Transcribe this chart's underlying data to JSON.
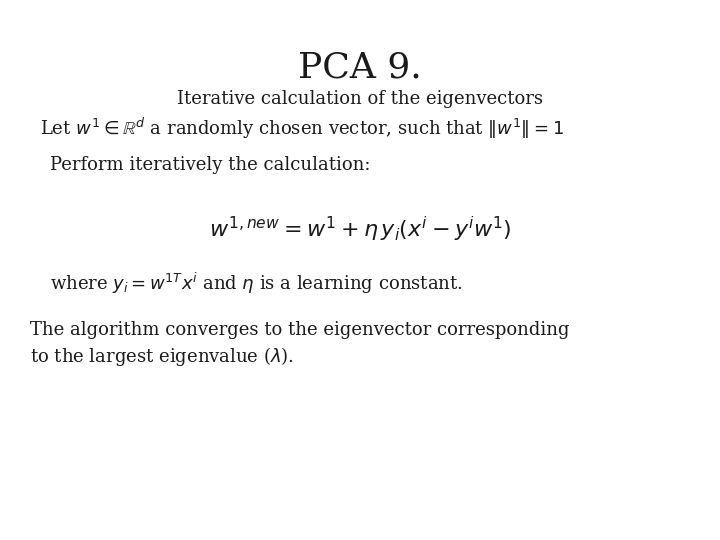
{
  "title": "PCA 9.",
  "subtitle": "Iterative calculation of the eigenvectors",
  "line1_plain": "Let w",
  "line2": "Perform iteratively the calculation:",
  "formula": "$w^{1,new} = w^1 + \\eta\\, y_i(x^i - y^i w^1)$",
  "line3": "where y",
  "line4a": "The algorithm converges to the eigenvector corresponding",
  "line4b": "to the largest eigenvalue (",
  "bg_color": "#ffffff",
  "text_color": "#1a1a1a",
  "title_fontsize": 26,
  "subtitle_fontsize": 13,
  "body_fontsize": 13,
  "formula_fontsize": 16
}
